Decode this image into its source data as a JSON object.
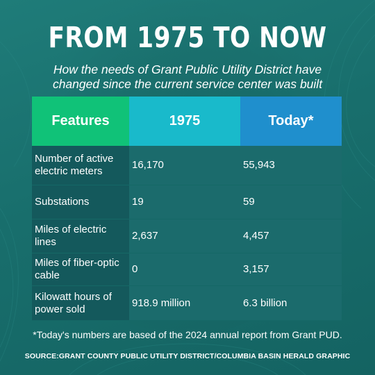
{
  "title": "FROM 1975 TO NOW",
  "subtitle_line1": "How the needs of Grant Public Utility District have",
  "subtitle_line2": "changed since the current service center was built",
  "table": {
    "headers": [
      "Features",
      "1975",
      "Today*"
    ],
    "header_colors": [
      "#10c278",
      "#19bacb",
      "#1f8fcd"
    ],
    "rows": [
      {
        "feature_line1": "Number of active",
        "feature_line2": "electric meters",
        "y1975": "16,170",
        "today": "55,943"
      },
      {
        "feature_line1": "Substations",
        "feature_line2": "",
        "y1975": "19",
        "today": "59"
      },
      {
        "feature_line1": "Miles of electric",
        "feature_line2": "lines",
        "y1975": "2,637",
        "today": "4,457"
      },
      {
        "feature_line1": "Miles of fiber-optic",
        "feature_line2": "cable",
        "y1975": "0",
        "today": "3,157"
      },
      {
        "feature_line1": "Kilowatt hours of",
        "feature_line2": "power sold",
        "y1975": "918.9 million",
        "today": "6.3 billion"
      }
    ]
  },
  "footnote": "*Today's numbers are based of the 2024 annual report from Grant PUD.",
  "source": "SOURCE:GRANT COUNTY PUBLIC UTILITY DISTRICT/COLUMBIA BASIN HERALD GRAPHIC",
  "colors": {
    "background": "#1b716f",
    "feature_cell": "#14595c",
    "value_cell": "#1b6b6c"
  }
}
